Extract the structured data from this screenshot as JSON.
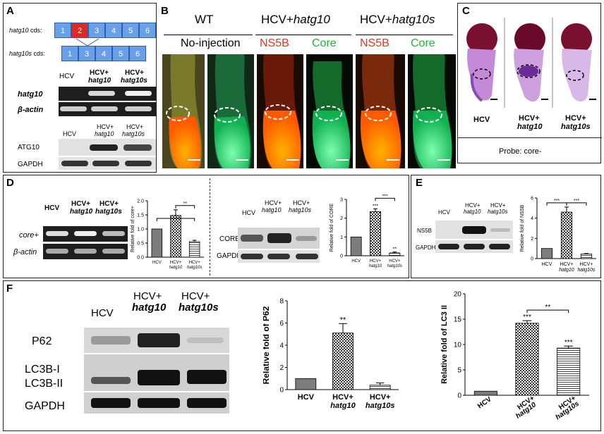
{
  "panels": {
    "A": {
      "label": "A",
      "cds": [
        {
          "name": "hatg10",
          "suffix": " cds:"
        },
        {
          "name": "hatg10s",
          "suffix": " cds:"
        }
      ],
      "exons_top": [
        "1",
        "2",
        "3",
        "4",
        "5",
        "6"
      ],
      "exons_bottom": [
        "1",
        "3",
        "4",
        "5",
        "6"
      ],
      "lanes": [
        "HCV",
        "HCV+",
        "hatg10",
        "HCV+",
        "hatg10s"
      ],
      "genes": [
        "hatg10",
        "β-actin"
      ],
      "lanes2": [
        "HCV",
        "HCV+",
        "hatg10",
        "HCV+",
        "hatg10s"
      ],
      "proteins": [
        "ATG10",
        "GAPDH"
      ]
    },
    "B": {
      "label": "B",
      "groups": [
        "WT",
        "HCV+",
        "hatg10",
        "HCV+",
        "hatg10s"
      ],
      "sub": [
        "No-injection",
        "NS5B",
        "Core",
        "NS5B",
        "Core"
      ]
    },
    "C": {
      "label": "C",
      "lanes": [
        "HCV",
        "HCV+",
        "hatg10",
        "HCV+",
        "hatg10s"
      ],
      "probe": "Probe: core-"
    },
    "D": {
      "label": "D",
      "lanes": [
        "HCV",
        "HCV+",
        "hatg10",
        "HCV+",
        "hatg10s"
      ],
      "genes": [
        "core+",
        "β-actin"
      ],
      "lanes2": [
        "HCV",
        "HCV+",
        "hatg10",
        "HCV+",
        "hatg10s"
      ],
      "proteins": [
        "CORE",
        "GAPDH"
      ]
    },
    "E": {
      "label": "E",
      "lanes": [
        "HCV",
        "HCV+",
        "hatg10",
        "HCV+",
        "hatg10s"
      ],
      "proteins": [
        "NS5B",
        "GAPDH"
      ]
    },
    "F": {
      "label": "F",
      "lanes": [
        "HCV",
        "HCV+",
        "hatg10",
        "HCV+",
        "hatg10s"
      ],
      "proteins": [
        "P62",
        "LC3B-I",
        "LC3B-II",
        "GAPDH"
      ]
    }
  },
  "chart_data": [
    {
      "type": "bar",
      "panel": "D-left",
      "categories": [
        "HCV",
        "HCV+ hatg10",
        "HCV+ hatg10s"
      ],
      "values": [
        1.0,
        1.48,
        0.55
      ],
      "errors": [
        0,
        0.2,
        0.05
      ],
      "ylabel": "Relative fold of core+",
      "ylim": [
        0,
        2
      ],
      "yticks": [
        "0.0",
        "0.5",
        "1.0",
        "1.5",
        "2.0"
      ],
      "significance": [
        "*",
        "**"
      ]
    },
    {
      "type": "bar",
      "panel": "D-right",
      "categories": [
        "HCV",
        "HCV+ hatg10",
        "HCV+ hatg10s"
      ],
      "values": [
        1.0,
        2.35,
        0.15
      ],
      "errors": [
        0,
        0.15,
        0.05
      ],
      "ylabel": "Relative fold of CORE",
      "ylim": [
        0,
        3
      ],
      "yticks": [
        "0",
        "1",
        "2",
        "3"
      ],
      "significance": [
        "***",
        "***",
        "**"
      ]
    },
    {
      "type": "bar",
      "panel": "E",
      "categories": [
        "HCV",
        "HCV+ hatg10",
        "HCV+ hatg10s"
      ],
      "values": [
        1.0,
        4.6,
        0.45
      ],
      "errors": [
        0,
        0.5,
        0.05
      ],
      "ylabel": "Relative fold of NS5B",
      "ylim": [
        0,
        6
      ],
      "yticks": [
        "0",
        "2",
        "4",
        "6"
      ],
      "significance": [
        "***",
        "***"
      ]
    },
    {
      "type": "bar",
      "panel": "F-middle",
      "categories": [
        "HCV",
        "HCV+ hatg10",
        "HCV+ hatg10s"
      ],
      "values": [
        1.0,
        5.1,
        0.4
      ],
      "errors": [
        0,
        0.85,
        0.2
      ],
      "ylabel": "Relative fold of P62",
      "ylim": [
        0,
        8
      ],
      "yticks": [
        "0",
        "2",
        "4",
        "6",
        "8"
      ],
      "significance": [
        "**"
      ]
    },
    {
      "type": "bar",
      "panel": "F-right",
      "categories": [
        "HCV",
        "HCV+ hatg10",
        "HCV+ hatg10s"
      ],
      "values": [
        0.8,
        14.2,
        9.3
      ],
      "errors": [
        0,
        0.5,
        0.4
      ],
      "ylabel": "Relative fold of LC3 II",
      "ylim": [
        0,
        20
      ],
      "yticks": [
        "0",
        "5",
        "10",
        "15",
        "20"
      ],
      "significance": [
        "***",
        "***",
        "**"
      ]
    }
  ],
  "colors": {
    "exon": "#6aa0e8",
    "exon_alt": "#e12626",
    "orange": "#ff7a00",
    "green": "#20d060"
  }
}
